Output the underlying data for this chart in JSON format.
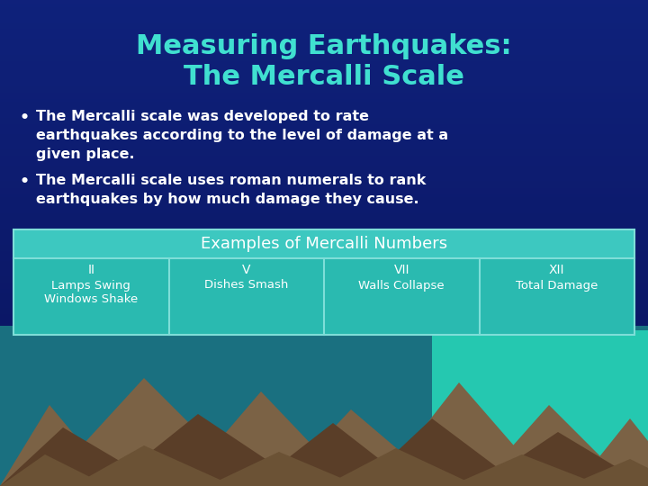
{
  "title_line1": "Measuring Earthquakes:",
  "title_line2": "The Mercalli Scale",
  "title_color": "#40E0D0",
  "bg_color": "#0a1a6b",
  "bullet1_line1": "The Mercalli scale was developed to rate",
  "bullet1_line2": "earthquakes according to the level of damage at a",
  "bullet1_line3": "given place.",
  "bullet2_line1": "The Mercalli scale uses roman numerals to rank",
  "bullet2_line2": "earthquakes by how much damage they cause.",
  "bullet_color": "#ffffff",
  "table_header": "Examples of Mercalli Numbers",
  "table_header_bg": "#3DC8C0",
  "table_cell_bg": "#2ABAB0",
  "table_border_color": "#7EDED8",
  "table_text_color": "#ffffff",
  "col1_roman": "II",
  "col1_desc": "Lamps Swing\nWindows Shake",
  "col2_roman": "V",
  "col2_desc": "Dishes Smash",
  "col3_roman": "VII",
  "col3_desc": "Walls Collapse",
  "col4_roman": "XII",
  "col4_desc": "Total Damage",
  "mountain_color1": "#7B6245",
  "mountain_color2": "#5a3e28",
  "mountain_color3": "#6b5235",
  "sky_mid_color": "#1a5080",
  "water_color": "#25C8B0"
}
